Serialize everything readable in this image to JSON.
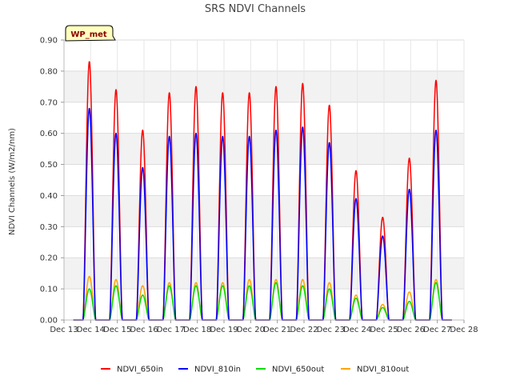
{
  "chart_data": {
    "type": "line",
    "title": "SRS NDVI Channels",
    "xlabel": "",
    "ylabel": "NDVI Channels (W/m2/nm)",
    "badge": "WP_met",
    "ylim": [
      0.0,
      0.9
    ],
    "yticks": [
      0.0,
      0.1,
      0.2,
      0.3,
      0.4,
      0.5,
      0.6,
      0.7,
      0.8,
      0.9
    ],
    "ytick_labels": [
      "0.00",
      "0.10",
      "0.20",
      "0.30",
      "0.40",
      "0.50",
      "0.60",
      "0.70",
      "0.80",
      "0.90"
    ],
    "xlim": [
      13,
      28
    ],
    "xticks": [
      13,
      14,
      15,
      16,
      17,
      18,
      19,
      20,
      21,
      22,
      23,
      24,
      25,
      26,
      27,
      28
    ],
    "xtick_labels": [
      "Dec 13",
      "Dec 14",
      "Dec 15",
      "Dec 16",
      "Dec 17",
      "Dec 18",
      "Dec 19",
      "Dec 20",
      "Dec 21",
      "Dec 22",
      "Dec 23",
      "Dec 24",
      "Dec 25",
      "Dec 26",
      "Dec 27",
      "Dec 28"
    ],
    "grid": true,
    "legend_position": "bottom-center",
    "day_centers": [
      13.95,
      14.95,
      15.95,
      16.95,
      17.95,
      18.95,
      19.95,
      20.95,
      21.95,
      22.95,
      23.95,
      24.95,
      25.95,
      26.95
    ],
    "series": [
      {
        "name": "NDVI_650in",
        "color": "#ff0000",
        "peaks": [
          0.83,
          0.74,
          0.61,
          0.73,
          0.75,
          0.73,
          0.73,
          0.75,
          0.76,
          0.69,
          0.48,
          0.33,
          0.52,
          0.77
        ]
      },
      {
        "name": "NDVI_810in",
        "color": "#0000ff",
        "peaks": [
          0.68,
          0.6,
          0.49,
          0.59,
          0.6,
          0.59,
          0.59,
          0.61,
          0.62,
          0.57,
          0.39,
          0.27,
          0.42,
          0.61
        ]
      },
      {
        "name": "NDVI_650out",
        "color": "#00dd00",
        "peaks": [
          0.1,
          0.11,
          0.08,
          0.11,
          0.11,
          0.11,
          0.11,
          0.12,
          0.11,
          0.1,
          0.07,
          0.04,
          0.06,
          0.12
        ]
      },
      {
        "name": "NDVI_810out",
        "color": "#ffa500",
        "peaks": [
          0.14,
          0.13,
          0.11,
          0.12,
          0.12,
          0.12,
          0.13,
          0.13,
          0.13,
          0.12,
          0.08,
          0.05,
          0.09,
          0.13
        ]
      }
    ]
  }
}
